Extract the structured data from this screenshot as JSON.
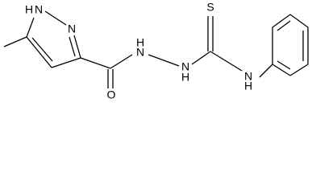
{
  "atoms": [
    {
      "label": "N",
      "h": "H"
    },
    {
      "label": "N"
    },
    {
      "label": "O"
    },
    {
      "label": "N",
      "h": "H"
    },
    {
      "label": "N",
      "h": "H"
    },
    {
      "label": "S"
    },
    {
      "label": "N",
      "h": "H"
    }
  ]
}
